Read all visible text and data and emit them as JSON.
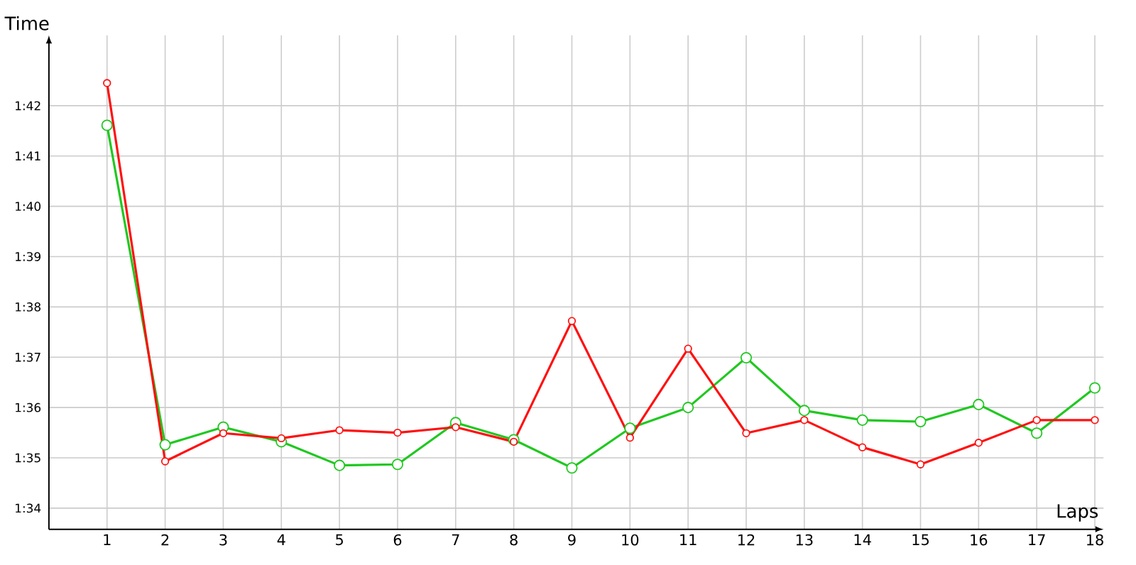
{
  "chart_data": {
    "type": "line",
    "xlabel": "Laps",
    "ylabel": "Time",
    "x": [
      1,
      2,
      3,
      4,
      5,
      6,
      7,
      8,
      9,
      10,
      11,
      12,
      13,
      14,
      15,
      16,
      17,
      18
    ],
    "series": [
      {
        "color": "#20c820",
        "values": [
          101.61,
          95.26,
          95.61,
          95.32,
          94.85,
          94.87,
          95.7,
          95.36,
          94.8,
          95.59,
          96.0,
          96.99,
          95.94,
          95.75,
          95.72,
          96.06,
          95.49,
          96.39
        ]
      },
      {
        "color": "#ff1010",
        "values": [
          102.45,
          94.93,
          95.49,
          95.39,
          95.55,
          95.5,
          95.61,
          95.32,
          97.72,
          95.4,
          97.17,
          95.49,
          95.75,
          95.21,
          94.87,
          95.3,
          95.75,
          95.75
        ]
      }
    ],
    "xlim": [
      0,
      18.15
    ],
    "ylim": [
      93.58,
      103.4
    ],
    "xticks": [
      1,
      2,
      3,
      4,
      5,
      6,
      7,
      8,
      9,
      10,
      11,
      12,
      13,
      14,
      15,
      16,
      17,
      18
    ],
    "yticks": [
      {
        "value": 94,
        "label": "1:34"
      },
      {
        "value": 95,
        "label": "1:35"
      },
      {
        "value": 96,
        "label": "1:36"
      },
      {
        "value": 97,
        "label": "1:37"
      },
      {
        "value": 98,
        "label": "1:38"
      },
      {
        "value": 99,
        "label": "1:39"
      },
      {
        "value": 100,
        "label": "1:40"
      },
      {
        "value": 101,
        "label": "1:41"
      },
      {
        "value": 102,
        "label": "1:42"
      }
    ],
    "grid": true,
    "marker": "circle",
    "line_style": "solid"
  }
}
